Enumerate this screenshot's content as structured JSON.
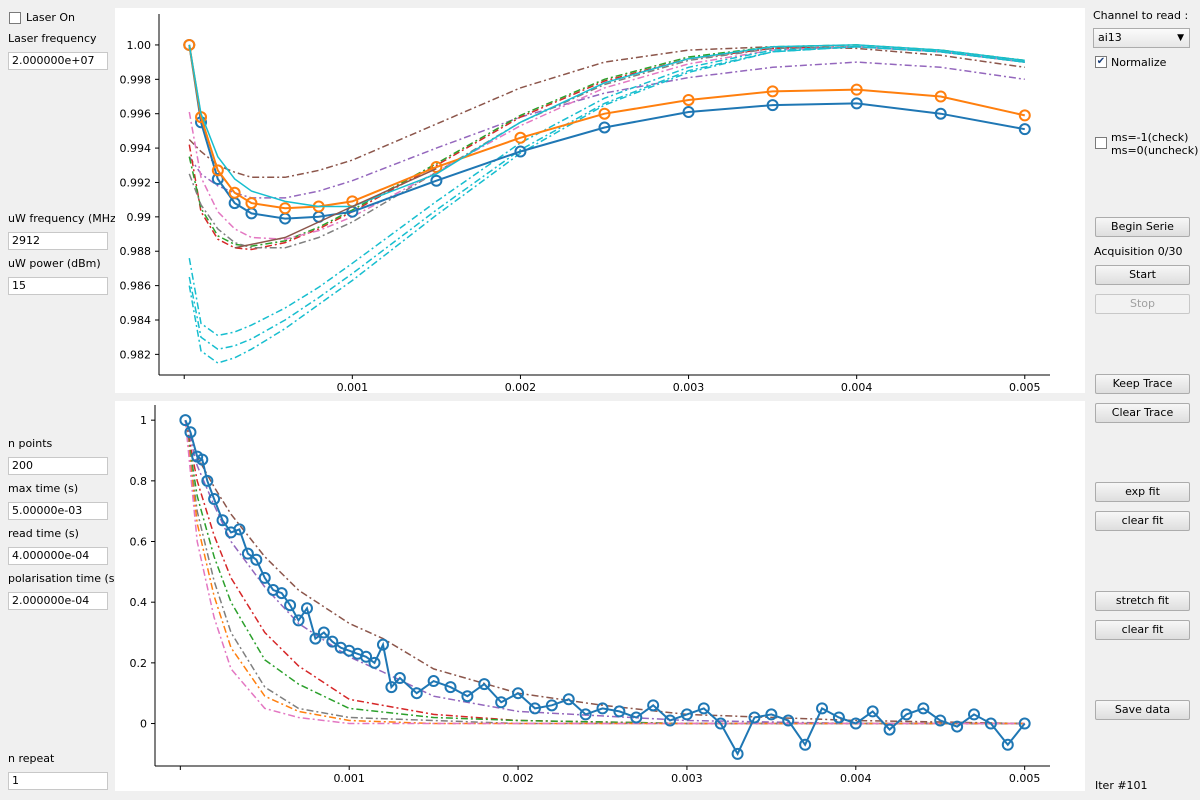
{
  "left_panel": {
    "laser_on_label": "Laser On",
    "laser_on_checked": false,
    "laser_frequency_label": "Laser frequency",
    "laser_frequency_value": "2.000000e+07",
    "uw_frequency_label": "uW frequency (MHz)",
    "uw_frequency_value": "2912",
    "uw_power_label": "uW power (dBm)",
    "uw_power_value": "15",
    "n_points_label": "n points",
    "n_points_value": "200",
    "max_time_label": "max time (s)",
    "max_time_value": "5.00000e-03",
    "read_time_label": "read time (s)",
    "read_time_value": "4.000000e-04",
    "polarisation_time_label": "polarisation time (s)",
    "polarisation_time_value": "2.000000e-04",
    "n_repeat_label": "n repeat",
    "n_repeat_value": "1"
  },
  "right_panel": {
    "channel_label": "Channel to read :",
    "channel_selected": "ai13",
    "normalize_label": "Normalize",
    "normalize_checked": true,
    "ms_check_line1": "ms=-1(check)",
    "ms_check_line2": "ms=0(uncheck)",
    "ms_checked": false,
    "begin_serie_label": "Begin Serie",
    "acquisition_status": "Acquisition 0/30",
    "start_label": "Start",
    "stop_label": "Stop",
    "keep_trace_label": "Keep Trace",
    "clear_trace_label": "Clear Trace",
    "exp_fit_label": "exp fit",
    "clear_fit_label_1": "clear fit",
    "stretch_fit_label": "stretch fit",
    "clear_fit_label_2": "clear fit",
    "save_data_label": "Save data",
    "iteration": "Iter #101"
  },
  "chart_data": [
    {
      "type": "line",
      "xlim": [
        -0.00015,
        0.00515
      ],
      "ylim": [
        0.9808,
        1.0018
      ],
      "xticks": [
        0.001,
        0.002,
        0.003,
        0.004,
        0.005
      ],
      "xtick_labels": [
        "0.001",
        "0.002",
        "0.003",
        "0.004",
        "0.005"
      ],
      "yticks": [
        0.982,
        0.984,
        0.986,
        0.988,
        0.99,
        0.992,
        0.994,
        0.996,
        0.998,
        1.0
      ],
      "ytick_labels": [
        "0.982",
        "0.984",
        "0.986",
        "0.988",
        "0.99",
        "0.992",
        "0.994",
        "0.996",
        "0.998",
        "1.00"
      ],
      "grid": false,
      "series": [
        {
          "color": "#8c564b",
          "style": "dashdot",
          "x": [
            3e-05,
            0.0001,
            0.0002,
            0.0003,
            0.0004,
            0.0006,
            0.0008,
            0.001,
            0.0015,
            0.002,
            0.0025,
            0.003,
            0.0035,
            0.004,
            0.0045,
            0.005
          ],
          "y": [
            0.9945,
            0.9938,
            0.993,
            0.9926,
            0.9923,
            0.9923,
            0.9927,
            0.9933,
            0.9954,
            0.9975,
            0.999,
            0.9997,
            0.9999,
            0.9998,
            0.9994,
            0.9987
          ]
        },
        {
          "color": "#9467bd",
          "style": "dashdot",
          "x": [
            3e-05,
            0.0001,
            0.0002,
            0.0003,
            0.0004,
            0.0006,
            0.0008,
            0.001,
            0.0015,
            0.002,
            0.0025,
            0.003,
            0.0035,
            0.004,
            0.0045,
            0.005
          ],
          "y": [
            0.9935,
            0.9925,
            0.9918,
            0.9914,
            0.9911,
            0.9911,
            0.9915,
            0.9921,
            0.994,
            0.9958,
            0.9972,
            0.9981,
            0.9987,
            0.999,
            0.9987,
            0.998
          ]
        },
        {
          "color": "#d62728",
          "style": "dashdot",
          "x": [
            3e-05,
            0.0001,
            0.0002,
            0.0003,
            0.0004,
            0.0006,
            0.0008,
            0.001,
            0.0015,
            0.002,
            0.0025,
            0.003,
            0.0035,
            0.004,
            0.0045,
            0.005
          ],
          "y": [
            0.9942,
            0.9903,
            0.9887,
            0.9882,
            0.9881,
            0.9885,
            0.9893,
            0.9903,
            0.993,
            0.9958,
            0.9979,
            0.9992,
            0.9998,
            0.9999,
            0.9996,
            0.999
          ]
        },
        {
          "color": "#2ca02c",
          "style": "dashdot",
          "x": [
            3e-05,
            0.0001,
            0.0002,
            0.0003,
            0.0004,
            0.0006,
            0.0008,
            0.001,
            0.0015,
            0.002,
            0.0025,
            0.003,
            0.0035,
            0.004,
            0.0045,
            0.005
          ],
          "y": [
            0.9935,
            0.9905,
            0.9889,
            0.9884,
            0.9883,
            0.9886,
            0.9894,
            0.9904,
            0.9931,
            0.9959,
            0.998,
            0.9993,
            0.9999,
            1.0,
            0.9997,
            0.9991
          ]
        },
        {
          "color": "#7f7f7f",
          "style": "dashdot",
          "x": [
            3e-05,
            0.0001,
            0.0002,
            0.0003,
            0.0004,
            0.0006,
            0.0008,
            0.001,
            0.0015,
            0.002,
            0.0025,
            0.003,
            0.0035,
            0.004,
            0.0045,
            0.005
          ],
          "y": [
            0.9925,
            0.9907,
            0.9893,
            0.9885,
            0.9882,
            0.9882,
            0.9888,
            0.9897,
            0.9926,
            0.9955,
            0.9977,
            0.9991,
            0.9998,
            0.9999,
            0.9996,
            0.999
          ]
        },
        {
          "color": "#e377c2",
          "style": "dashdot",
          "x": [
            3e-05,
            0.0001,
            0.0002,
            0.0003,
            0.0004,
            0.0006,
            0.0008,
            0.001,
            0.0015,
            0.002,
            0.0025,
            0.003,
            0.0035,
            0.004,
            0.0045,
            0.005
          ],
          "y": [
            0.9961,
            0.9923,
            0.9903,
            0.9893,
            0.9888,
            0.9887,
            0.9892,
            0.99,
            0.9926,
            0.9953,
            0.9975,
            0.9989,
            0.9997,
            0.9999,
            0.9996,
            0.999
          ]
        },
        {
          "color": "#17becf",
          "style": "dashdot",
          "x": [
            3e-05,
            0.0001,
            0.0002,
            0.0003,
            0.0004,
            0.0006,
            0.0008,
            0.001,
            0.0015,
            0.002,
            0.0025,
            0.003,
            0.0035,
            0.004,
            0.0045,
            0.005
          ],
          "y": [
            0.9876,
            0.9838,
            0.9831,
            0.9833,
            0.9837,
            0.9847,
            0.9859,
            0.9873,
            0.9909,
            0.9943,
            0.9969,
            0.9987,
            0.9997,
            0.9999,
            0.9996,
            0.999
          ]
        },
        {
          "color": "#17becf",
          "style": "dashdot",
          "x": [
            3e-05,
            0.0001,
            0.0002,
            0.0003,
            0.0004,
            0.0006,
            0.0008,
            0.001,
            0.0015,
            0.002,
            0.0025,
            0.003,
            0.0035,
            0.004,
            0.0045,
            0.005
          ],
          "y": [
            0.9865,
            0.983,
            0.9823,
            0.9825,
            0.9829,
            0.984,
            0.9853,
            0.9867,
            0.9904,
            0.9939,
            0.9966,
            0.9985,
            0.9996,
            0.9999,
            0.9996,
            0.999
          ]
        },
        {
          "color": "#17becf",
          "style": "dashdot",
          "x": [
            3e-05,
            0.0001,
            0.0002,
            0.0003,
            0.0004,
            0.0006,
            0.0008,
            0.001,
            0.0015,
            0.002,
            0.0025,
            0.003,
            0.0035,
            0.004,
            0.0045,
            0.005
          ],
          "y": [
            0.986,
            0.9822,
            0.9815,
            0.9818,
            0.9823,
            0.9835,
            0.9849,
            0.9863,
            0.9901,
            0.9937,
            0.9965,
            0.9984,
            0.9996,
            0.9999,
            0.9996,
            0.999
          ]
        },
        {
          "color": "#1f77b4",
          "style": "markers",
          "x": [
            3e-05,
            0.0001,
            0.0002,
            0.0003,
            0.0004,
            0.0006,
            0.0008,
            0.001,
            0.0015,
            0.002,
            0.0025,
            0.003,
            0.0035,
            0.004,
            0.0045,
            0.005
          ],
          "y": [
            1.0,
            0.9955,
            0.9922,
            0.9908,
            0.9902,
            0.9899,
            0.99,
            0.9903,
            0.9921,
            0.9938,
            0.9952,
            0.9961,
            0.9965,
            0.9966,
            0.996,
            0.9951
          ]
        },
        {
          "color": "#ff7f0e",
          "style": "markers",
          "x": [
            3e-05,
            0.0001,
            0.0002,
            0.0003,
            0.0004,
            0.0006,
            0.0008,
            0.001,
            0.0015,
            0.002,
            0.0025,
            0.003,
            0.0035,
            0.004,
            0.0045,
            0.005
          ],
          "y": [
            1.0,
            0.9958,
            0.9927,
            0.9914,
            0.9908,
            0.9905,
            0.9906,
            0.9909,
            0.9929,
            0.9946,
            0.996,
            0.9968,
            0.9973,
            0.9974,
            0.997,
            0.9959
          ]
        },
        {
          "color": "#17becf",
          "style": "solid",
          "x": [
            3e-05,
            0.0001,
            0.0002,
            0.0003,
            0.0004,
            0.0006,
            0.0008,
            0.001,
            0.0015,
            0.002,
            0.0025,
            0.003,
            0.0035,
            0.004,
            0.0045,
            0.005
          ],
          "y": [
            1.0,
            0.996,
            0.9935,
            0.9922,
            0.9915,
            0.9909,
            0.9906,
            0.9906,
            0.9925,
            0.9955,
            0.9978,
            0.9992,
            0.9999,
            1.0,
            0.9997,
            0.9991
          ]
        },
        {
          "color": "#8c564b",
          "style": "solid",
          "x": [
            0.0003,
            0.0006,
            0.0008,
            0.001,
            0.0015
          ],
          "y": [
            0.9882,
            0.9888,
            0.9897,
            0.9906,
            0.9928
          ]
        }
      ]
    },
    {
      "type": "line",
      "xlim": [
        -0.00015,
        0.00515
      ],
      "ylim": [
        -0.14,
        1.05
      ],
      "xticks": [
        0.001,
        0.002,
        0.003,
        0.004,
        0.005
      ],
      "xtick_labels": [
        "0.001",
        "0.002",
        "0.003",
        "0.004",
        "0.005"
      ],
      "yticks": [
        0,
        0.2,
        0.4,
        0.6,
        0.8,
        1
      ],
      "ytick_labels": [
        "0",
        "0.2",
        "0.4",
        "0.6",
        "0.8",
        "1"
      ],
      "grid": false,
      "series": [
        {
          "color": "#8c564b",
          "style": "dashdot",
          "x": [
            3e-05,
            0.0001,
            0.0002,
            0.0003,
            0.0005,
            0.0007,
            0.001,
            0.0012,
            0.0015,
            0.002,
            0.0025,
            0.003,
            0.004,
            0.005
          ],
          "y": [
            1.0,
            0.88,
            0.78,
            0.69,
            0.55,
            0.44,
            0.33,
            0.28,
            0.18,
            0.1,
            0.06,
            0.03,
            0.01,
            0.0
          ]
        },
        {
          "color": "#9467bd",
          "style": "dashdot",
          "x": [
            3e-05,
            0.0001,
            0.0002,
            0.0003,
            0.0005,
            0.0007,
            0.001,
            0.0012,
            0.0015,
            0.002,
            0.003,
            0.004,
            0.005
          ],
          "y": [
            1.0,
            0.85,
            0.72,
            0.6,
            0.45,
            0.33,
            0.22,
            0.17,
            0.09,
            0.04,
            0.01,
            0.0,
            0.0
          ]
        },
        {
          "color": "#d62728",
          "style": "dashdot",
          "x": [
            3e-05,
            0.0001,
            0.0002,
            0.0003,
            0.0005,
            0.0007,
            0.001,
            0.0015,
            0.002,
            0.003,
            0.004,
            0.005
          ],
          "y": [
            1.0,
            0.8,
            0.62,
            0.48,
            0.3,
            0.19,
            0.08,
            0.03,
            0.01,
            0.0,
            0.0,
            0.0
          ]
        },
        {
          "color": "#2ca02c",
          "style": "dashdot",
          "x": [
            3e-05,
            0.0001,
            0.0002,
            0.0003,
            0.0005,
            0.0007,
            0.001,
            0.0015,
            0.002,
            0.003,
            0.004,
            0.005
          ],
          "y": [
            1.0,
            0.75,
            0.55,
            0.4,
            0.21,
            0.13,
            0.05,
            0.02,
            0.01,
            0.0,
            0.0,
            0.0
          ]
        },
        {
          "color": "#7f7f7f",
          "style": "dashdot",
          "x": [
            3e-05,
            0.0001,
            0.0002,
            0.0003,
            0.0005,
            0.0007,
            0.001,
            0.0015,
            0.002,
            0.003,
            0.004,
            0.005
          ],
          "y": [
            1.0,
            0.7,
            0.47,
            0.3,
            0.12,
            0.05,
            0.02,
            0.01,
            0.0,
            0.0,
            0.0,
            0.0
          ]
        },
        {
          "color": "#ff7f0e",
          "style": "dashdot",
          "x": [
            3e-05,
            0.0001,
            0.0002,
            0.0003,
            0.0005,
            0.0007,
            0.001,
            0.0015,
            0.002,
            0.003,
            0.004,
            0.005
          ],
          "y": [
            1.0,
            0.66,
            0.42,
            0.25,
            0.09,
            0.04,
            0.01,
            0.0,
            0.0,
            0.0,
            0.0,
            0.0
          ]
        },
        {
          "color": "#e377c2",
          "style": "dashdot",
          "x": [
            3e-05,
            0.0001,
            0.0002,
            0.0003,
            0.0005,
            0.0007,
            0.001,
            0.0015,
            0.002,
            0.003,
            0.004,
            0.005
          ],
          "y": [
            1.0,
            0.6,
            0.35,
            0.18,
            0.05,
            0.02,
            0.0,
            0.0,
            0.0,
            0.0,
            0.0,
            0.0
          ]
        },
        {
          "color": "#1f77b4",
          "style": "markers",
          "x": [
            3e-05,
            6e-05,
            0.0001,
            0.00013,
            0.00016,
            0.0002,
            0.00025,
            0.0003,
            0.00035,
            0.0004,
            0.00045,
            0.0005,
            0.00055,
            0.0006,
            0.00065,
            0.0007,
            0.00075,
            0.0008,
            0.00085,
            0.0009,
            0.00095,
            0.001,
            0.00105,
            0.0011,
            0.00115,
            0.0012,
            0.00125,
            0.0013,
            0.0014,
            0.0015,
            0.0016,
            0.0017,
            0.0018,
            0.0019,
            0.002,
            0.0021,
            0.0022,
            0.0023,
            0.0024,
            0.0025,
            0.0026,
            0.0027,
            0.0028,
            0.0029,
            0.003,
            0.0031,
            0.0032,
            0.0033,
            0.0034,
            0.0035,
            0.0036,
            0.0037,
            0.0038,
            0.0039,
            0.004,
            0.0041,
            0.0042,
            0.0043,
            0.0044,
            0.0045,
            0.0046,
            0.0047,
            0.0048,
            0.0049,
            0.005
          ],
          "y": [
            1.0,
            0.96,
            0.88,
            0.87,
            0.8,
            0.74,
            0.67,
            0.63,
            0.64,
            0.56,
            0.54,
            0.48,
            0.44,
            0.43,
            0.39,
            0.34,
            0.38,
            0.28,
            0.3,
            0.27,
            0.25,
            0.24,
            0.23,
            0.22,
            0.2,
            0.26,
            0.12,
            0.15,
            0.1,
            0.14,
            0.12,
            0.09,
            0.13,
            0.07,
            0.1,
            0.05,
            0.06,
            0.08,
            0.03,
            0.05,
            0.04,
            0.02,
            0.06,
            0.01,
            0.03,
            0.05,
            0.0,
            -0.1,
            0.02,
            0.03,
            0.01,
            -0.07,
            0.05,
            0.02,
            0.0,
            0.04,
            -0.02,
            0.03,
            0.05,
            0.01,
            -0.01,
            0.03,
            0.0,
            -0.07,
            0.0
          ]
        }
      ]
    }
  ]
}
